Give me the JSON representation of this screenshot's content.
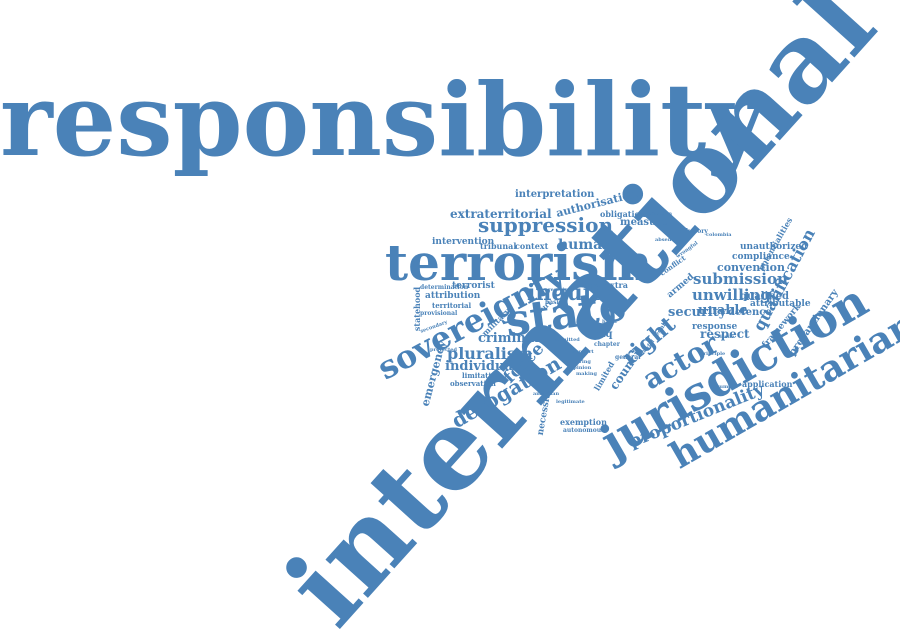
{
  "colors": {
    "word": "#4a82b8",
    "background": "#ffffff"
  },
  "words": [
    "responsibility",
    "international",
    "jurisdiction",
    "humanitarian",
    "terrorism",
    "state",
    "sovereignty",
    "suppression",
    "inquiry",
    "actor",
    "right",
    "force",
    "derogation",
    "pluralism",
    "criminal",
    "individual",
    "proportionality",
    "submission",
    "unwilling",
    "convention",
    "compliance",
    "unauthorized",
    "qualification",
    "precautionary",
    "security",
    "unable",
    "qualified",
    "attributable",
    "defence",
    "respect",
    "response",
    "framework",
    "application",
    "human",
    "measure",
    "obligation",
    "authorisation",
    "interpretation",
    "extraterritorial",
    "intervention",
    "tribunal",
    "context",
    "terrorist",
    "attribution",
    "territorial",
    "determination",
    "provisional",
    "statehood",
    "emergency",
    "secondary",
    "military",
    "protected",
    "limitation",
    "observation",
    "necessity",
    "exemption",
    "autonomous",
    "council",
    "limited",
    "general",
    "iraq",
    "chapter",
    "extra",
    "legal",
    "court",
    "basis",
    "organ",
    "conflict",
    "armed",
    "wrongful",
    "advisory",
    "potentialities",
    "colombia",
    "lawful",
    "making",
    "opinion",
    "absence",
    "reactive",
    "support",
    "ensuring",
    "implication",
    "harm",
    "argument",
    "legitimate",
    "issue",
    "principle",
    "american",
    "permitted"
  ]
}
